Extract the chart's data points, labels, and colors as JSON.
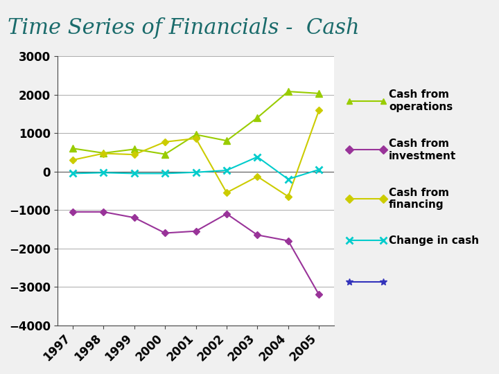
{
  "title": "Time Series of Financials -  Cash",
  "title_color": "#1a6b6b",
  "title_bg_color": "#dcdcdc",
  "plot_bg_color": "#f0f0f0",
  "chart_bg_color": "#ffffff",
  "outer_bg_color": "#c8c8c8",
  "years": [
    "1997",
    "1998",
    "1999",
    "2000",
    "2001",
    "2002",
    "2003",
    "2004",
    "2005"
  ],
  "cash_from_operations": [
    600,
    480,
    580,
    450,
    960,
    800,
    1400,
    2080,
    2030
  ],
  "cash_from_investment": [
    -1050,
    -1050,
    -1200,
    -1600,
    -1550,
    -1100,
    -1650,
    -1800,
    -3200
  ],
  "cash_from_financing": [
    300,
    470,
    440,
    770,
    860,
    -550,
    -130,
    -650,
    1590
  ],
  "change_in_cash": [
    -50,
    -30,
    -50,
    -50,
    -20,
    30,
    380,
    -200,
    50
  ],
  "ops_color": "#99cc00",
  "inv_color": "#993399",
  "fin_color": "#cccc00",
  "chg_color": "#00cccc",
  "ylim": [
    -4000,
    3000
  ],
  "yticks": [
    -4000,
    -3000,
    -2000,
    -1000,
    0,
    1000,
    2000,
    3000
  ],
  "legend_labels": [
    "Cash from\noperations",
    "Cash from\ninvestment",
    "Cash from\nfinancing",
    "Change in cash"
  ],
  "title_fontsize": 22,
  "axis_tick_fontsize": 12,
  "legend_fontsize": 11
}
